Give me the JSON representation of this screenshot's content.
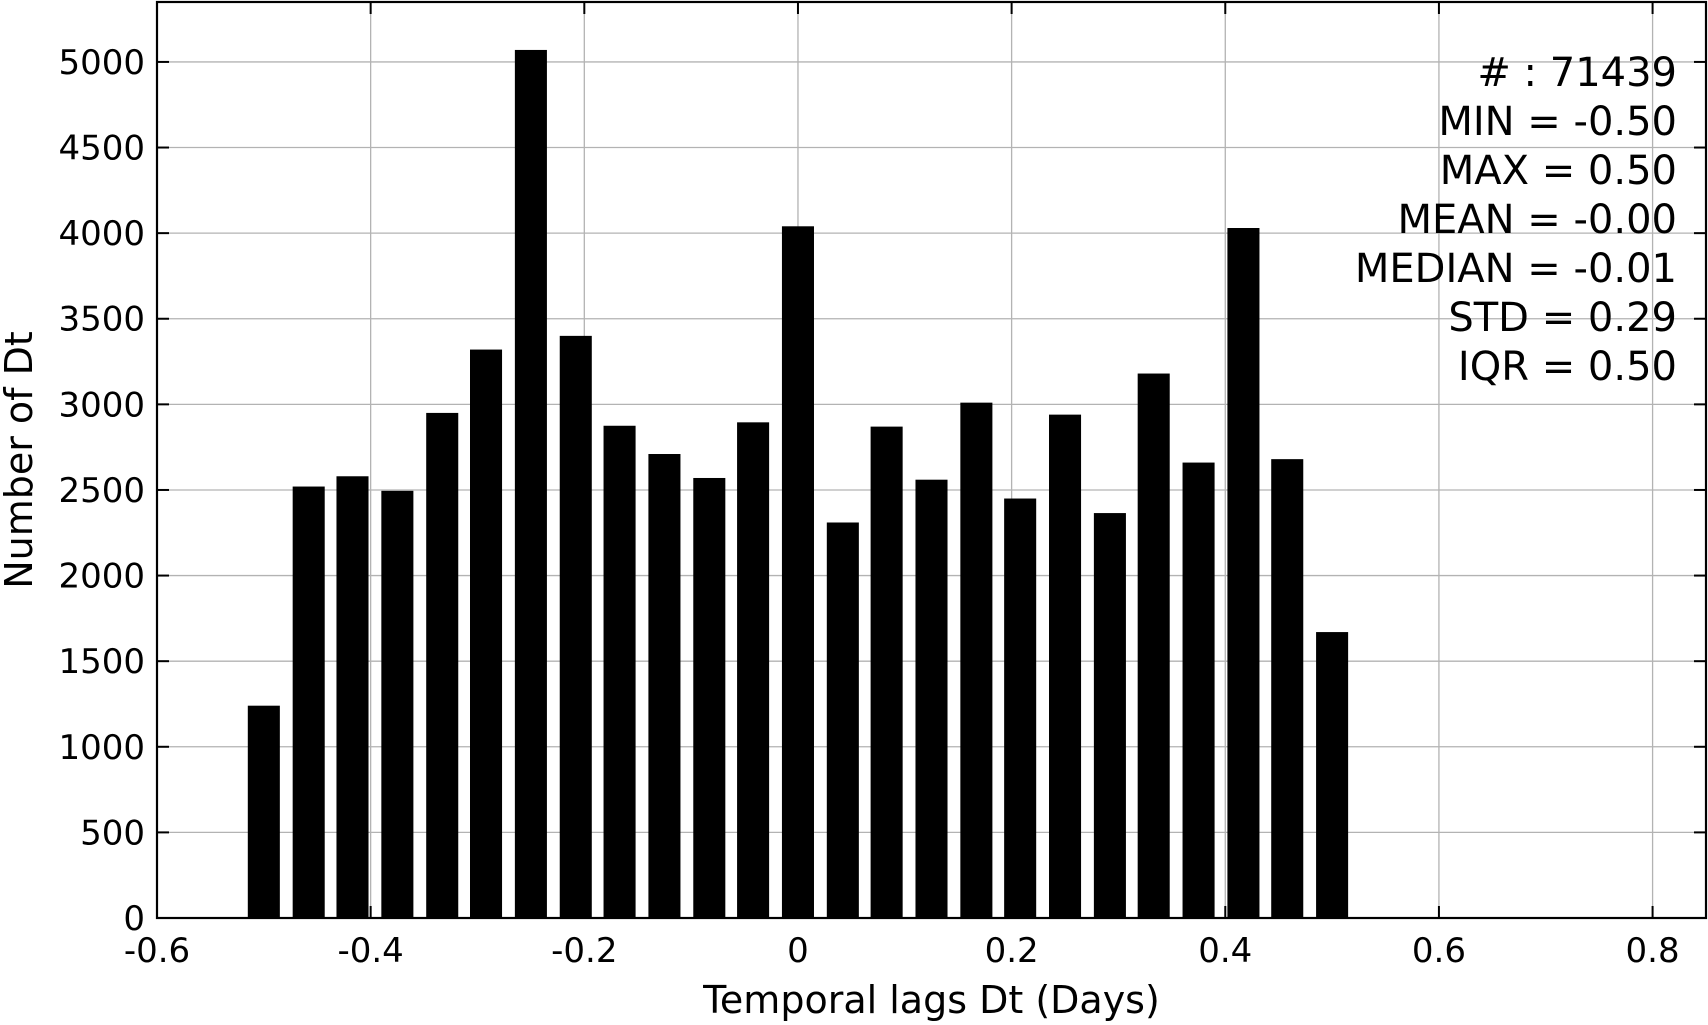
{
  "chart_data": {
    "type": "bar",
    "title": "",
    "xlabel": "Temporal lags Dt (Days)",
    "ylabel": "Number of Dt",
    "xlim": [
      -0.6,
      0.85
    ],
    "ylim": [
      0,
      5350
    ],
    "xticks": [
      -0.6,
      -0.4,
      -0.2,
      0,
      0.2,
      0.4,
      0.6,
      0.8
    ],
    "xtick_labels": [
      "-0.6",
      "-0.4",
      "-0.2",
      "0",
      "0.2",
      "0.4",
      "0.6",
      "0.8"
    ],
    "yticks": [
      0,
      500,
      1000,
      1500,
      2000,
      2500,
      3000,
      3500,
      4000,
      4500,
      5000
    ],
    "ytick_labels": [
      "0",
      "500",
      "1000",
      "1500",
      "2000",
      "2500",
      "3000",
      "3500",
      "4000",
      "4500",
      "5000"
    ],
    "grid": true,
    "bar_color": "#000000",
    "bar_width": 0.03,
    "x": [
      -0.5,
      -0.458,
      -0.417,
      -0.375,
      -0.333,
      -0.292,
      -0.25,
      -0.208,
      -0.167,
      -0.125,
      -0.083,
      -0.042,
      0.0,
      0.042,
      0.083,
      0.125,
      0.167,
      0.208,
      0.25,
      0.292,
      0.333,
      0.375,
      0.417,
      0.458,
      0.5
    ],
    "values": [
      1240,
      2520,
      2580,
      2495,
      2950,
      3320,
      5070,
      3400,
      2875,
      2710,
      2570,
      2895,
      4040,
      2310,
      2870,
      2560,
      3010,
      2450,
      2940,
      2365,
      3180,
      2660,
      4030,
      2680,
      1670
    ],
    "annotations": [
      "# : 71439",
      "MIN = -0.50",
      "MAX =  0.50",
      "MEAN = -0.00",
      "MEDIAN = -0.01",
      "STD = 0.29",
      "IQR = 0.50"
    ]
  }
}
